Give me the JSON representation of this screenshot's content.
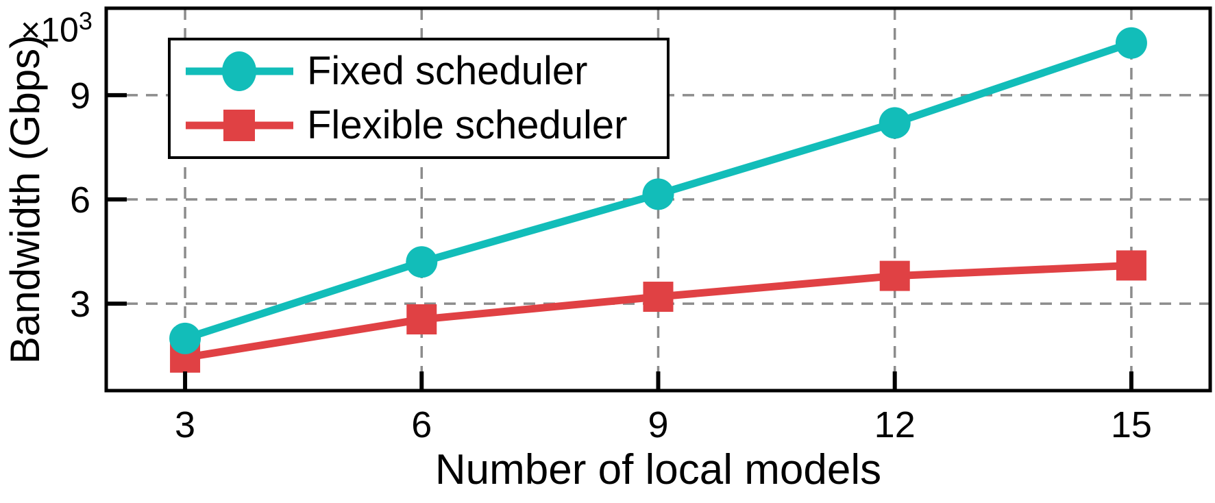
{
  "chart_data": {
    "type": "line",
    "title": "",
    "xlabel": "Number of local models",
    "ylabel": "Bandwidth (Gbps)",
    "y_multiplier_base": "×10",
    "y_multiplier_exp": "3",
    "x": [
      3,
      6,
      9,
      12,
      15
    ],
    "series": [
      {
        "name": "Fixed scheduler",
        "marker": "circle",
        "color": "#12BDB9",
        "values": [
          2.0,
          4.2,
          6.15,
          8.2,
          10.5
        ]
      },
      {
        "name": "Flexible scheduler",
        "marker": "square",
        "color": "#E04144",
        "values": [
          1.45,
          2.55,
          3.2,
          3.8,
          4.1
        ]
      }
    ],
    "xlim": [
      2,
      16
    ],
    "ylim": [
      0.5,
      11.5
    ],
    "x_ticks": [
      3,
      6,
      9,
      12,
      15
    ],
    "y_ticks": [
      3,
      6,
      9
    ],
    "grid": true,
    "grid_color": "#8c8c8c",
    "axis_color": "#000000",
    "legend_position": "top-left",
    "units_note": "Bandwidth values are in Gbps × 10³"
  }
}
